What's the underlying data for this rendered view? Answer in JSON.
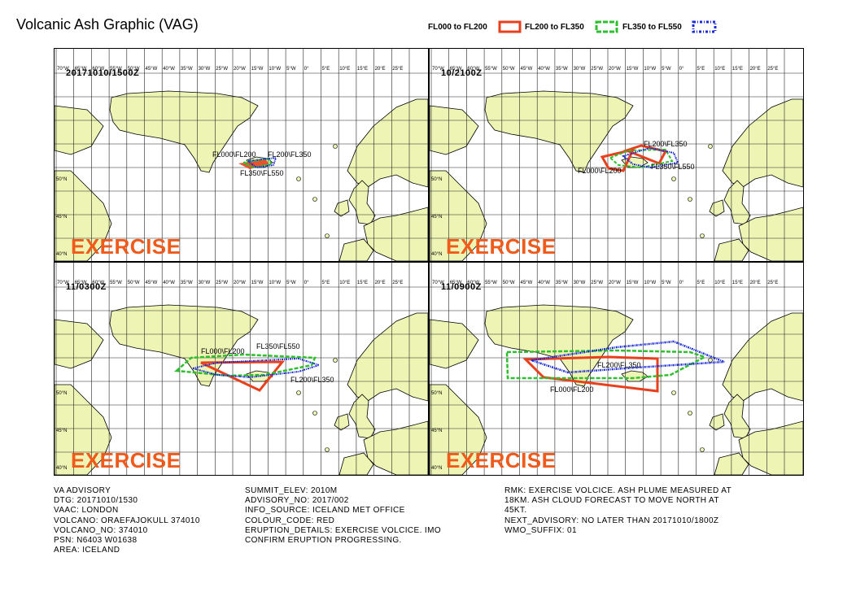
{
  "title": "Volcanic Ash Graphic (VAG)",
  "legend": {
    "items": [
      {
        "label": "FL000 to FL200",
        "color": "#e8401c",
        "style": "solid"
      },
      {
        "label": "FL200 to FL350",
        "color": "#2dbf2d",
        "style": "dashed"
      },
      {
        "label": "FL350 to FL550",
        "color": "#1a2ad8",
        "style": "dotted"
      }
    ]
  },
  "map": {
    "lon_labels": [
      "70°W",
      "65°W",
      "60°W",
      "55°W",
      "50°W",
      "45°W",
      "40°W",
      "35°W",
      "30°W",
      "25°W",
      "20°W",
      "15°W",
      "10°W",
      "5°W",
      "0°",
      "5°E",
      "10°E",
      "15°E",
      "20°E",
      "25°E"
    ],
    "lat_labels": [
      "40°N",
      "45°N",
      "50°N"
    ],
    "land_color": "#eef5b4",
    "watermark": "EXERCISE"
  },
  "panels": [
    {
      "dtg": "20171010/1500Z",
      "labels": [
        {
          "text": "FL000\\FL200"
        },
        {
          "text": "FL200\\FL350"
        },
        {
          "text": "FL350\\FL550"
        }
      ]
    },
    {
      "dtg": "10/2100Z",
      "labels": [
        {
          "text": "FL200\\FL350"
        },
        {
          "text": "FL000\\FL200"
        },
        {
          "text": "FL350\\FL550"
        }
      ]
    },
    {
      "dtg": "11/0300Z",
      "labels": [
        {
          "text": "FL000\\FL200"
        },
        {
          "text": "FL350\\FL550"
        },
        {
          "text": "FL200\\FL350"
        }
      ]
    },
    {
      "dtg": "11/0900Z",
      "labels": [
        {
          "text": "FL200\\FL350"
        },
        {
          "text": "FL000\\FL200"
        }
      ]
    }
  ],
  "advisory": {
    "col1": [
      "VA ADVISORY",
      "DTG: 20171010/1530",
      "VAAC: LONDON",
      "VOLCANO: ORAEFAJOKULL 374010",
      "VOLCANO_NO: 374010",
      "PSN: N6403 W01638",
      "AREA: ICELAND"
    ],
    "col2": [
      "SUMMIT_ELEV: 2010M",
      "ADVISORY_NO: 2017/002",
      "INFO_SOURCE: ICELAND MET OFFICE",
      "COLOUR_CODE: RED",
      "ERUPTION_DETAILS: EXERCISE VOLCICE. IMO",
      "CONFIRM ERUPTION PROGRESSING."
    ],
    "col3": [
      "RMK: EXERCISE VOLCICE. ASH PLUME MEASURED AT",
      "18KM. ASH CLOUD FORECAST TO MOVE NORTH AT",
      "45KT.",
      "NEXT_ADVISORY: NO LATER THAN 20171010/1800Z",
      "WMO_SUFFIX: 01"
    ]
  }
}
